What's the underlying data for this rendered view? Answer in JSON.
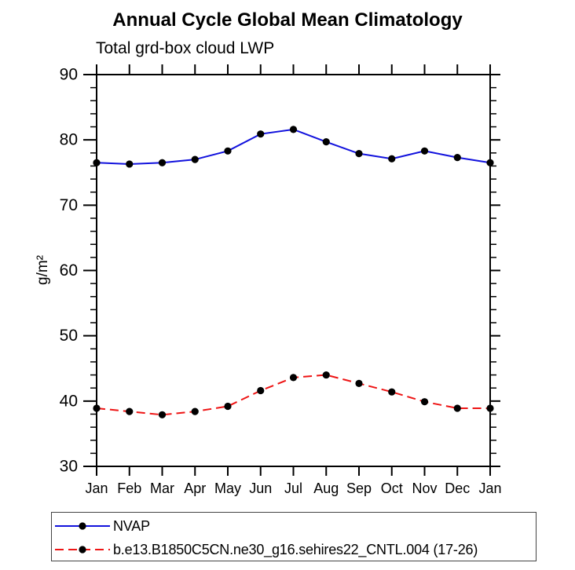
{
  "chart_data": {
    "type": "line",
    "title": "Annual Cycle Global Mean Climatology",
    "subtitle": "Total grd-box cloud LWP",
    "ylabel": "g/m²",
    "xlabel": "",
    "categories": [
      "Jan",
      "Feb",
      "Mar",
      "Apr",
      "May",
      "Jun",
      "Jul",
      "Aug",
      "Sep",
      "Oct",
      "Nov",
      "Dec",
      "Jan"
    ],
    "ylim": [
      30,
      90
    ],
    "ytick_major_step": 10,
    "ytick_minor_step": 2,
    "ytick_labels": [
      "30",
      "40",
      "50",
      "60",
      "70",
      "80",
      "90"
    ],
    "grid": false,
    "legend_position": "bottom-left-box",
    "axis_color": "#000000",
    "marker_color": "#000000",
    "series": [
      {
        "name": "NVAP",
        "color": "#1212dd",
        "line_style": "solid",
        "marker": "filled-circle",
        "values": [
          76.5,
          76.3,
          76.5,
          77.0,
          78.3,
          80.9,
          81.6,
          79.7,
          77.9,
          77.1,
          78.3,
          77.3,
          76.5
        ]
      },
      {
        "name": "b.e13.B1850C5CN.ne30_g16.sehires22_CNTL.004 (17-26)",
        "color": "#ee1414",
        "line_style": "dashed",
        "marker": "filled-circle",
        "values": [
          38.9,
          38.4,
          37.9,
          38.4,
          39.2,
          41.6,
          43.6,
          44.0,
          42.7,
          41.4,
          39.9,
          38.9,
          38.9
        ]
      }
    ]
  }
}
